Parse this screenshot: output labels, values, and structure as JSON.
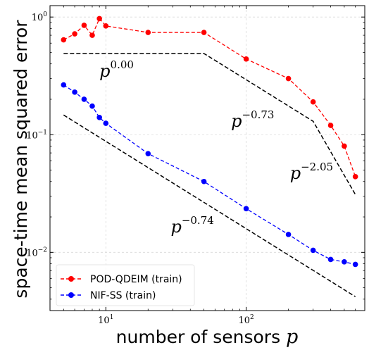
{
  "chart_data": {
    "type": "line",
    "xscale": "log",
    "yscale": "log",
    "xlim": [
      4,
      700
    ],
    "ylim": [
      0.0032,
      1.25
    ],
    "grid": true,
    "legend_position": "lower-left",
    "xlabel_text": "number of sensors ",
    "xlabel_var": "p",
    "ylabel": "space-time mean squared error",
    "x_ticks": [
      {
        "value": 10,
        "base": "10",
        "exp": "1"
      },
      {
        "value": 100,
        "base": "10",
        "exp": "2"
      }
    ],
    "y_ticks": [
      {
        "value": 0.01,
        "base": "10",
        "exp": "−2"
      },
      {
        "value": 0.1,
        "base": "10",
        "exp": "−1"
      },
      {
        "value": 1,
        "base": "10",
        "exp": "0"
      }
    ],
    "series": [
      {
        "name": "POD-QDEIM (train)",
        "color": "#ff0000",
        "style": "dashed",
        "marker": "circle",
        "x": [
          5,
          6,
          7,
          8,
          9,
          10,
          20,
          50,
          100,
          200,
          300,
          400,
          500,
          600
        ],
        "y": [
          0.64,
          0.72,
          0.85,
          0.7,
          0.97,
          0.84,
          0.74,
          0.74,
          0.44,
          0.3,
          0.19,
          0.12,
          0.08,
          0.044
        ]
      },
      {
        "name": "NIF-SS (train)",
        "color": "#0000ff",
        "style": "dashed",
        "marker": "circle",
        "x": [
          5,
          6,
          7,
          8,
          9,
          10,
          20,
          50,
          100,
          200,
          300,
          400,
          500,
          600
        ],
        "y": [
          0.265,
          0.23,
          0.2,
          0.175,
          0.14,
          0.125,
          0.069,
          0.04,
          0.0235,
          0.0142,
          0.0104,
          0.0087,
          0.0083,
          0.0079
        ]
      }
    ],
    "reference_lines": [
      {
        "color": "#000000",
        "style": "dashed",
        "x": [
          5,
          50,
          300,
          600
        ],
        "y": [
          0.49,
          0.49,
          0.13,
          0.031
        ]
      },
      {
        "color": "#000000",
        "style": "dashed",
        "x": [
          5,
          600
        ],
        "y": [
          0.147,
          0.0042
        ]
      }
    ],
    "annotations": [
      {
        "base": "p",
        "exp": "0.00",
        "x": 9,
        "y": 0.31
      },
      {
        "base": "p",
        "exp": "−0.73",
        "x": 78,
        "y": 0.117
      },
      {
        "base": "p",
        "exp": "−2.05",
        "x": 205,
        "y": 0.042
      },
      {
        "base": "p",
        "exp": "−0.74",
        "x": 29,
        "y": 0.0148
      }
    ]
  }
}
